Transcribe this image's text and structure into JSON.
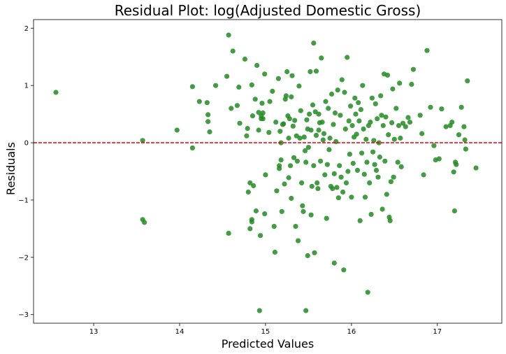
{
  "chart_data": {
    "type": "scatter",
    "title": "Residual Plot: log(Adjusted Domestic Gross)",
    "xlabel": "Predicted Values",
    "ylabel": "Residuals",
    "xlim": [
      12.3,
      17.75
    ],
    "ylim": [
      -3.15,
      2.15
    ],
    "xticks": [
      13,
      14,
      15,
      16,
      17
    ],
    "xtick_labels": [
      "13",
      "14",
      "15",
      "16",
      "17"
    ],
    "yticks": [
      -3,
      -2,
      -1,
      0,
      1,
      2
    ],
    "ytick_labels": [
      "−3",
      "−2",
      "−1",
      "0",
      "1",
      "2"
    ],
    "grid": false,
    "reference_line": {
      "y": 0,
      "color": "#e8000b",
      "style": "dashed"
    },
    "point_color": "#228b22",
    "points": [
      [
        12.56,
        0.88
      ],
      [
        13.57,
        0.04
      ],
      [
        13.57,
        -1.34
      ],
      [
        13.59,
        -1.39
      ],
      [
        13.97,
        0.22
      ],
      [
        14.15,
        0.98
      ],
      [
        14.15,
        -0.09
      ],
      [
        14.23,
        0.72
      ],
      [
        14.32,
        0.7
      ],
      [
        14.33,
        0.49
      ],
      [
        14.33,
        0.37
      ],
      [
        14.35,
        0.19
      ],
      [
        14.42,
        1.0
      ],
      [
        14.55,
        1.16
      ],
      [
        14.57,
        1.88
      ],
      [
        14.57,
        -1.58
      ],
      [
        14.6,
        0.6
      ],
      [
        14.62,
        1.6
      ],
      [
        14.67,
        0.65
      ],
      [
        14.69,
        0.97
      ],
      [
        14.7,
        0.34
      ],
      [
        14.76,
        1.46
      ],
      [
        14.78,
        0.12
      ],
      [
        14.79,
        0.25
      ],
      [
        14.8,
        -0.86
      ],
      [
        14.82,
        -0.7
      ],
      [
        14.82,
        -1.5
      ],
      [
        14.84,
        1.01
      ],
      [
        14.84,
        -1.38
      ],
      [
        14.84,
        -1.34
      ],
      [
        14.85,
        0.47
      ],
      [
        14.86,
        -0.75
      ],
      [
        14.88,
        0.76
      ],
      [
        14.89,
        -1.19
      ],
      [
        14.9,
        1.35
      ],
      [
        14.92,
        0.53
      ],
      [
        14.92,
        0.22
      ],
      [
        14.93,
        -2.93
      ],
      [
        14.94,
        -1.62
      ],
      [
        14.95,
        0.47
      ],
      [
        14.95,
        0.42
      ],
      [
        14.96,
        0.69
      ],
      [
        14.97,
        0.52
      ],
      [
        14.97,
        0.42
      ],
      [
        14.99,
        1.2
      ],
      [
        14.99,
        -1.24
      ],
      [
        15.0,
        -0.56
      ],
      [
        15.04,
        0.18
      ],
      [
        15.05,
        0.72
      ],
      [
        15.08,
        0.9
      ],
      [
        15.1,
        -1.46
      ],
      [
        15.11,
        -1.91
      ],
      [
        15.12,
        0.36
      ],
      [
        15.13,
        -0.84
      ],
      [
        15.15,
        1.12
      ],
      [
        15.16,
        -0.4
      ],
      [
        15.16,
        -0.45
      ],
      [
        15.17,
        0.2
      ],
      [
        15.18,
        0.0
      ],
      [
        15.18,
        -0.3
      ],
      [
        15.19,
        -1.2
      ],
      [
        15.2,
        0.32
      ],
      [
        15.21,
        0.33
      ],
      [
        15.22,
        -0.72
      ],
      [
        15.23,
        0.76
      ],
      [
        15.24,
        0.82
      ],
      [
        15.25,
        1.24
      ],
      [
        15.26,
        0.47
      ],
      [
        15.27,
        -0.61
      ],
      [
        15.27,
        0.08
      ],
      [
        15.28,
        0.42
      ],
      [
        15.29,
        -0.4
      ],
      [
        15.3,
        0.8
      ],
      [
        15.3,
        -0.97
      ],
      [
        15.31,
        1.17
      ],
      [
        15.32,
        0.29
      ],
      [
        15.33,
        -0.26
      ],
      [
        15.34,
        0.39
      ],
      [
        15.35,
        -1.46
      ],
      [
        15.36,
        0.12
      ],
      [
        15.37,
        -0.32
      ],
      [
        15.38,
        -1.71
      ],
      [
        15.39,
        0.99
      ],
      [
        15.4,
        0.08
      ],
      [
        15.41,
        0.56
      ],
      [
        15.42,
        -0.7
      ],
      [
        15.43,
        -1.1
      ],
      [
        15.44,
        -1.2
      ],
      [
        15.45,
        0.1
      ],
      [
        15.46,
        -0.14
      ],
      [
        15.47,
        -0.34
      ],
      [
        15.47,
        -2.93
      ],
      [
        15.48,
        0.4
      ],
      [
        15.49,
        0.24
      ],
      [
        15.49,
        -1.97
      ],
      [
        15.5,
        -0.08
      ],
      [
        15.51,
        0.5
      ],
      [
        15.52,
        1.24
      ],
      [
        15.53,
        0.22
      ],
      [
        15.53,
        -1.26
      ],
      [
        15.54,
        -0.76
      ],
      [
        15.55,
        0.66
      ],
      [
        15.56,
        1.74
      ],
      [
        15.56,
        -0.4
      ],
      [
        15.57,
        -1.92
      ],
      [
        15.58,
        0.54
      ],
      [
        15.59,
        1.25
      ],
      [
        15.59,
        0.13
      ],
      [
        15.6,
        -0.7
      ],
      [
        15.61,
        -0.8
      ],
      [
        15.62,
        0.5
      ],
      [
        15.62,
        0.22
      ],
      [
        15.63,
        0.35
      ],
      [
        15.64,
        -0.32
      ],
      [
        15.65,
        1.48
      ],
      [
        15.66,
        0.36
      ],
      [
        15.67,
        0.05
      ],
      [
        15.68,
        0.16
      ],
      [
        15.69,
        -0.56
      ],
      [
        15.7,
        0.72
      ],
      [
        15.71,
        -1.32
      ],
      [
        15.72,
        -0.38
      ],
      [
        15.73,
        0.6
      ],
      [
        15.74,
        -0.12
      ],
      [
        15.75,
        0.08
      ],
      [
        15.76,
        -0.76
      ],
      [
        15.77,
        0.85
      ],
      [
        15.78,
        -0.8
      ],
      [
        15.79,
        0.32
      ],
      [
        15.8,
        -2.1
      ],
      [
        15.8,
        -0.54
      ],
      [
        15.81,
        0.52
      ],
      [
        15.82,
        0.02
      ],
      [
        15.83,
        -0.78
      ],
      [
        15.84,
        0.92
      ],
      [
        15.85,
        -0.96
      ],
      [
        15.86,
        -0.4
      ],
      [
        15.87,
        0.48
      ],
      [
        15.88,
        -0.6
      ],
      [
        15.89,
        1.1
      ],
      [
        15.9,
        -0.86
      ],
      [
        15.91,
        -2.22
      ],
      [
        15.92,
        0.88
      ],
      [
        15.93,
        0.24
      ],
      [
        15.94,
        -0.7
      ],
      [
        15.95,
        1.49
      ],
      [
        15.96,
        -0.5
      ],
      [
        15.97,
        0.38
      ],
      [
        15.98,
        -0.2
      ],
      [
        15.99,
        0.64
      ],
      [
        16.0,
        -0.95
      ],
      [
        16.01,
        0.3
      ],
      [
        16.02,
        -0.36
      ],
      [
        16.03,
        0.1
      ],
      [
        16.04,
        0.78
      ],
      [
        16.05,
        0.5
      ],
      [
        16.06,
        0.15
      ],
      [
        16.07,
        -0.48
      ],
      [
        16.08,
        0.7
      ],
      [
        16.09,
        0.38
      ],
      [
        16.1,
        -1.36
      ],
      [
        16.11,
        0.58
      ],
      [
        16.12,
        -0.18
      ],
      [
        16.13,
        1.0
      ],
      [
        16.14,
        0.24
      ],
      [
        16.15,
        -0.55
      ],
      [
        16.16,
        -0.95
      ],
      [
        16.17,
        0.06
      ],
      [
        16.18,
        -0.34
      ],
      [
        16.19,
        -2.61
      ],
      [
        16.2,
        0.3
      ],
      [
        16.21,
        -0.7
      ],
      [
        16.22,
        0.36
      ],
      [
        16.23,
        -1.25
      ],
      [
        16.24,
        0.78
      ],
      [
        16.25,
        -0.16
      ],
      [
        16.26,
        0.04
      ],
      [
        16.27,
        -0.38
      ],
      [
        16.28,
        0.68
      ],
      [
        16.29,
        -0.48
      ],
      [
        16.3,
        0.42
      ],
      [
        16.31,
        -0.6
      ],
      [
        16.32,
        0.0
      ],
      [
        16.33,
        -0.25
      ],
      [
        16.34,
        0.82
      ],
      [
        16.35,
        0.48
      ],
      [
        16.36,
        -1.16
      ],
      [
        16.37,
        0.3
      ],
      [
        16.38,
        1.2
      ],
      [
        16.39,
        -0.32
      ],
      [
        16.4,
        0.45
      ],
      [
        16.41,
        -0.9
      ],
      [
        16.42,
        1.18
      ],
      [
        16.43,
        0.14
      ],
      [
        16.44,
        -1.3
      ],
      [
        16.45,
        -1.36
      ],
      [
        16.46,
        -0.68
      ],
      [
        16.47,
        0.35
      ],
      [
        16.48,
        0.94
      ],
      [
        16.49,
        -0.6
      ],
      [
        16.5,
        0.06
      ],
      [
        16.52,
        0.6
      ],
      [
        16.54,
        -0.34
      ],
      [
        16.55,
        0.3
      ],
      [
        16.56,
        1.04
      ],
      [
        16.57,
        0.08
      ],
      [
        16.58,
        -0.42
      ],
      [
        16.6,
        0.34
      ],
      [
        16.63,
        0.28
      ],
      [
        16.66,
        0.44
      ],
      [
        16.68,
        0.36
      ],
      [
        16.7,
        1.02
      ],
      [
        16.72,
        1.28
      ],
      [
        16.8,
        0.48
      ],
      [
        16.82,
        0.16
      ],
      [
        16.84,
        -0.56
      ],
      [
        16.88,
        1.61
      ],
      [
        16.92,
        0.62
      ],
      [
        16.96,
        -0.05
      ],
      [
        16.98,
        -0.3
      ],
      [
        17.02,
        -0.28
      ],
      [
        17.05,
        0.59
      ],
      [
        17.1,
        0.28
      ],
      [
        17.15,
        0.3
      ],
      [
        17.17,
        0.36
      ],
      [
        17.19,
        -0.51
      ],
      [
        17.2,
        -1.19
      ],
      [
        17.21,
        -0.34
      ],
      [
        17.22,
        -0.38
      ],
      [
        17.25,
        0.14
      ],
      [
        17.28,
        0.62
      ],
      [
        17.31,
        0.28
      ],
      [
        17.32,
        0.05
      ],
      [
        17.33,
        -0.11
      ],
      [
        17.35,
        1.08
      ],
      [
        17.45,
        -0.44
      ]
    ]
  }
}
